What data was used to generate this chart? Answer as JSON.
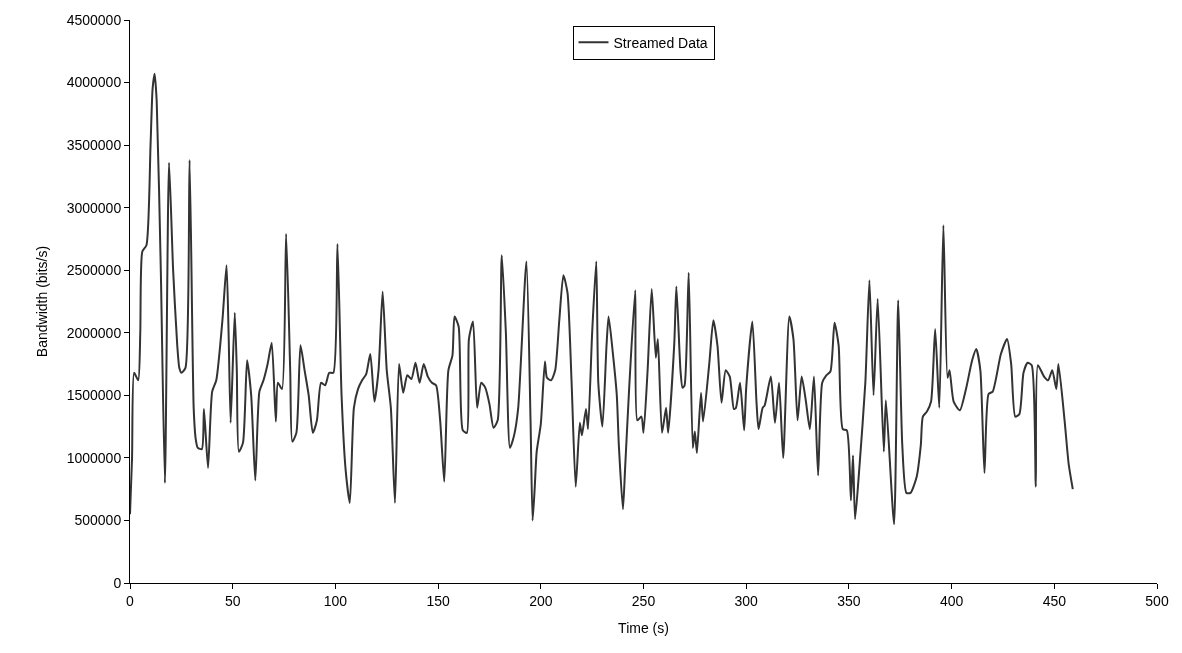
{
  "chart_data": {
    "type": "line",
    "xlabel": "Time (s)",
    "ylabel": "Bandwidth (bits/s)",
    "xlim": [
      0,
      500
    ],
    "xticks": [
      0,
      50,
      100,
      150,
      200,
      250,
      300,
      350,
      400,
      450,
      500
    ],
    "ylim": [
      0,
      4500000
    ],
    "yticks": [
      0,
      500000,
      1000000,
      1500000,
      2000000,
      2500000,
      3000000,
      3500000,
      4000000,
      4500000
    ],
    "grid": false,
    "legend": "top",
    "marker": "none",
    "line_style": "solid",
    "series": [
      {
        "name": "Streamed Data",
        "color": "#333333",
        "x": [
          0,
          1,
          2,
          4,
          5,
          6,
          8,
          10,
          11,
          12,
          13,
          15,
          17,
          19,
          21,
          23,
          24,
          25,
          27,
          29,
          31,
          32,
          33,
          35,
          36,
          38,
          40,
          42,
          45,
          47,
          48,
          49,
          51,
          52,
          53,
          55,
          57,
          59,
          61,
          63,
          65,
          67,
          69,
          71,
          72,
          74,
          76,
          78,
          79,
          81,
          83,
          85,
          87,
          89,
          91,
          93,
          95,
          97,
          99,
          101,
          103,
          105,
          107,
          109,
          111,
          113,
          115,
          117,
          119,
          121,
          123,
          125,
          127,
          129,
          131,
          133,
          135,
          137,
          139,
          141,
          143,
          145,
          147,
          149,
          151,
          153,
          155,
          157,
          158,
          160,
          162,
          164,
          165,
          167,
          169,
          171,
          173,
          175,
          177,
          179,
          181,
          183,
          185,
          187,
          189,
          193,
          195,
          196,
          197,
          198,
          200,
          202,
          203,
          205,
          207,
          209,
          211,
          213,
          215,
          217,
          219,
          220,
          222,
          223,
          225,
          227,
          228,
          230,
          232,
          233,
          235,
          237,
          238,
          240,
          241,
          243,
          246,
          247,
          249,
          250,
          252,
          254,
          256,
          257,
          259,
          261,
          262,
          265,
          266,
          268,
          269,
          270,
          272,
          274,
          275,
          276,
          278,
          279,
          282,
          284,
          286,
          288,
          290,
          292,
          294,
          295,
          297,
          299,
          300,
          303,
          305,
          306,
          308,
          309,
          312,
          314,
          316,
          318,
          321,
          323,
          325,
          327,
          329,
          331,
          333,
          335,
          337,
          339,
          341,
          343,
          345,
          347,
          349,
          351,
          352,
          353,
          355,
          358,
          360,
          362,
          364,
          367,
          368,
          372,
          374,
          376,
          378,
          380,
          383,
          385,
          386,
          388,
          390,
          392,
          394,
          396,
          398,
          399,
          401,
          404,
          407,
          410,
          412,
          414,
          416,
          418,
          420,
          424,
          427,
          429,
          431,
          433,
          435,
          437,
          439,
          441,
          442,
          445,
          447,
          449,
          451,
          452,
          455,
          457,
          459
        ],
        "values": [
          550000,
          1000000,
          1680000,
          1620000,
          2000000,
          2650000,
          2700000,
          3500000,
          3950000,
          4070000,
          3850000,
          2500000,
          800000,
          3360000,
          2500000,
          1900000,
          1720000,
          1680000,
          1720000,
          3380000,
          1400000,
          1150000,
          1080000,
          1070000,
          1390000,
          920000,
          1530000,
          1620000,
          2100000,
          2540000,
          2000000,
          1280000,
          2160000,
          1700000,
          1050000,
          1120000,
          1780000,
          1500000,
          820000,
          1530000,
          1620000,
          1750000,
          1920000,
          1290000,
          1600000,
          1550000,
          2790000,
          1700000,
          1130000,
          1200000,
          1900000,
          1700000,
          1500000,
          1200000,
          1300000,
          1600000,
          1580000,
          1680000,
          1680000,
          2710000,
          1500000,
          900000,
          640000,
          1400000,
          1550000,
          1620000,
          1670000,
          1830000,
          1450000,
          1700000,
          2330000,
          1700000,
          1400000,
          640000,
          1750000,
          1520000,
          1660000,
          1630000,
          1760000,
          1600000,
          1750000,
          1650000,
          1600000,
          1580000,
          1300000,
          810000,
          1700000,
          1820000,
          2130000,
          2050000,
          1220000,
          1200000,
          1950000,
          2090000,
          1400000,
          1600000,
          1560000,
          1430000,
          1240000,
          1300000,
          2620000,
          2000000,
          1080000,
          1180000,
          1400000,
          2570000,
          1300000,
          500000,
          750000,
          1050000,
          1270000,
          1770000,
          1640000,
          1620000,
          1700000,
          2100000,
          2460000,
          2320000,
          1600000,
          770000,
          1280000,
          1180000,
          1390000,
          1230000,
          2000000,
          2570000,
          1600000,
          1250000,
          1900000,
          2130000,
          1850000,
          1500000,
          1100000,
          590000,
          900000,
          1550000,
          2340000,
          1300000,
          1330000,
          1200000,
          1700000,
          2350000,
          1800000,
          1950000,
          1200000,
          1400000,
          1200000,
          1920000,
          2370000,
          1700000,
          1560000,
          1580000,
          2480000,
          1080000,
          1210000,
          1040000,
          1520000,
          1290000,
          1750000,
          2100000,
          1900000,
          1440000,
          1700000,
          1650000,
          1390000,
          1400000,
          1600000,
          1220000,
          1560000,
          2090000,
          1450000,
          1230000,
          1400000,
          1420000,
          1650000,
          1280000,
          1600000,
          1000000,
          2130000,
          1950000,
          1300000,
          1650000,
          1460000,
          1230000,
          1650000,
          860000,
          1600000,
          1660000,
          1690000,
          2080000,
          1900000,
          1230000,
          1220000,
          660000,
          1020000,
          510000,
          900000,
          1600000,
          2420000,
          1500000,
          2270000,
          1050000,
          1460000,
          470000,
          2260000,
          1100000,
          720000,
          720000,
          850000,
          1100000,
          1330000,
          1370000,
          1450000,
          2030000,
          1400000,
          2860000,
          1640000,
          1700000,
          1450000,
          1380000,
          1550000,
          1780000,
          1870000,
          1700000,
          880000,
          1510000,
          1530000,
          1830000,
          1950000,
          1750000,
          1330000,
          1350000,
          1680000,
          1760000,
          1740000,
          770000,
          1740000,
          1650000,
          1620000,
          1700000,
          1550000,
          1750000,
          1300000,
          950000,
          750000
        ]
      }
    ]
  }
}
